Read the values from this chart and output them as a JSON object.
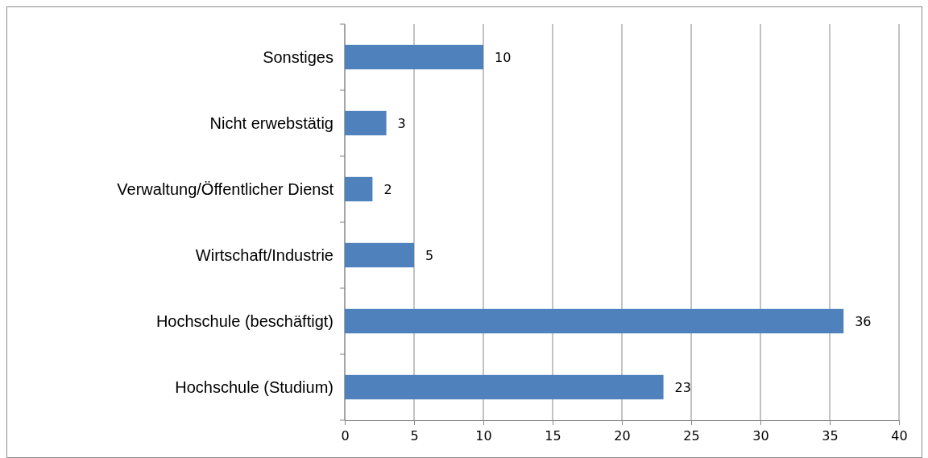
{
  "chart_data": {
    "type": "bar",
    "orientation": "horizontal",
    "categories": [
      "Sonstiges",
      "Nicht erwebstätig",
      "Verwaltung/Öffentlicher Dienst",
      "Wirtschaft/Industrie",
      "Hochschule (beschäftigt)",
      "Hochschule (Studium)"
    ],
    "values": [
      10,
      3,
      2,
      5,
      36,
      23
    ],
    "color": "#4f81bd",
    "xlim": [
      0,
      40
    ],
    "xticks": [
      0,
      5,
      10,
      15,
      20,
      25,
      30,
      35,
      40
    ],
    "grid": "x",
    "data_labels": true
  }
}
